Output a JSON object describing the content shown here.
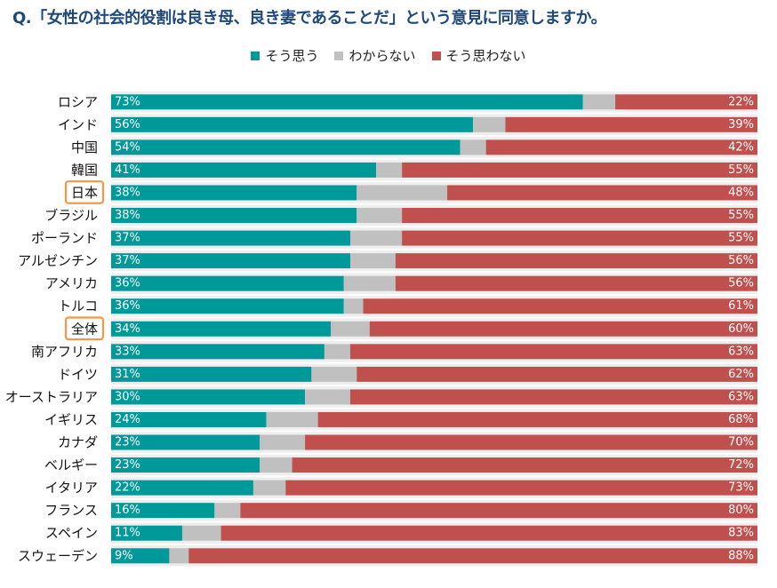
{
  "chart_data": {
    "type": "bar",
    "orientation": "horizontal",
    "stacked": "percent",
    "title": "Q.「女性の社会的役割は良き母、良き妻であることだ」という意見に同意しますか。",
    "categories": [
      "ロシア",
      "インド",
      "中国",
      "韓国",
      "日本",
      "ブラジル",
      "ポーランド",
      "アルゼンチン",
      "アメリカ",
      "トルコ",
      "全体",
      "南アフリカ",
      "ドイツ",
      "オーストラリア",
      "イギリス",
      "カナダ",
      "ベルギー",
      "イタリア",
      "フランス",
      "スペイン",
      "スウェーデン"
    ],
    "highlighted": [
      "日本",
      "全体"
    ],
    "series": [
      {
        "name": "そう思う",
        "color": "#009999",
        "values": [
          73,
          56,
          54,
          41,
          38,
          38,
          37,
          37,
          36,
          36,
          34,
          33,
          31,
          30,
          24,
          23,
          23,
          22,
          16,
          11,
          9
        ]
      },
      {
        "name": "わからない",
        "color": "#c0c0c0",
        "values": [
          5,
          5,
          4,
          4,
          14,
          7,
          8,
          7,
          8,
          3,
          6,
          4,
          7,
          7,
          8,
          7,
          5,
          5,
          4,
          6,
          3
        ]
      },
      {
        "name": "そう思わない",
        "color": "#c0504d",
        "values": [
          22,
          39,
          42,
          55,
          48,
          55,
          55,
          56,
          56,
          61,
          60,
          63,
          62,
          63,
          68,
          70,
          72,
          73,
          80,
          83,
          88
        ]
      }
    ],
    "value_labels": [
      "そう思う",
      "そう思わない"
    ],
    "xlim": [
      0,
      100
    ],
    "grid": false,
    "legend_position": "top-center"
  }
}
